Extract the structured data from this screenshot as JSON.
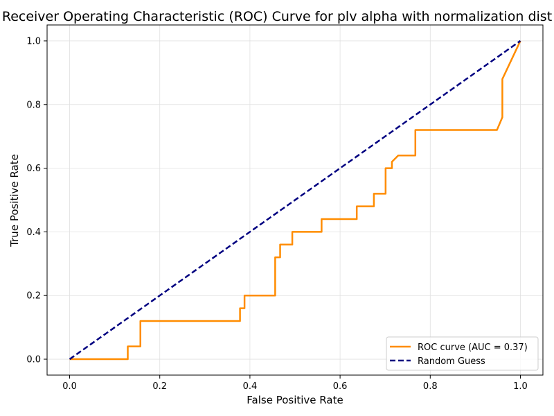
{
  "chart_data": {
    "type": "line",
    "title": "Receiver Operating Characteristic (ROC) Curve for plv alpha with normalization dist",
    "xlabel": "False Positive Rate",
    "ylabel": "True Positive Rate",
    "xlim": [
      -0.05,
      1.05
    ],
    "ylim": [
      -0.05,
      1.05
    ],
    "xticks": [
      "0.0",
      "0.2",
      "0.4",
      "0.6",
      "0.8",
      "1.0"
    ],
    "yticks": [
      "0.0",
      "0.2",
      "0.4",
      "0.6",
      "0.8",
      "1.0"
    ],
    "grid": true,
    "legend_position": "lower-right",
    "series": [
      {
        "name": "ROC curve (AUC = 0.37)",
        "color": "#ff8c00",
        "style": "solid",
        "x": [
          0.0,
          0.129,
          0.129,
          0.157,
          0.157,
          0.378,
          0.378,
          0.388,
          0.388,
          0.456,
          0.456,
          0.467,
          0.467,
          0.494,
          0.494,
          0.559,
          0.559,
          0.637,
          0.637,
          0.675,
          0.675,
          0.701,
          0.701,
          0.715,
          0.715,
          0.729,
          0.729,
          0.767,
          0.767,
          0.948,
          0.96,
          0.96,
          1.0
        ],
        "y": [
          0.0,
          0.0,
          0.04,
          0.04,
          0.12,
          0.12,
          0.16,
          0.16,
          0.2,
          0.2,
          0.32,
          0.32,
          0.36,
          0.36,
          0.4,
          0.4,
          0.44,
          0.44,
          0.48,
          0.48,
          0.52,
          0.52,
          0.6,
          0.6,
          0.62,
          0.64,
          0.64,
          0.64,
          0.72,
          0.72,
          0.76,
          0.88,
          1.0
        ]
      },
      {
        "name": "Random Guess",
        "color": "#000080",
        "style": "dashed",
        "x": [
          0.0,
          1.0
        ],
        "y": [
          0.0,
          1.0
        ]
      }
    ]
  }
}
